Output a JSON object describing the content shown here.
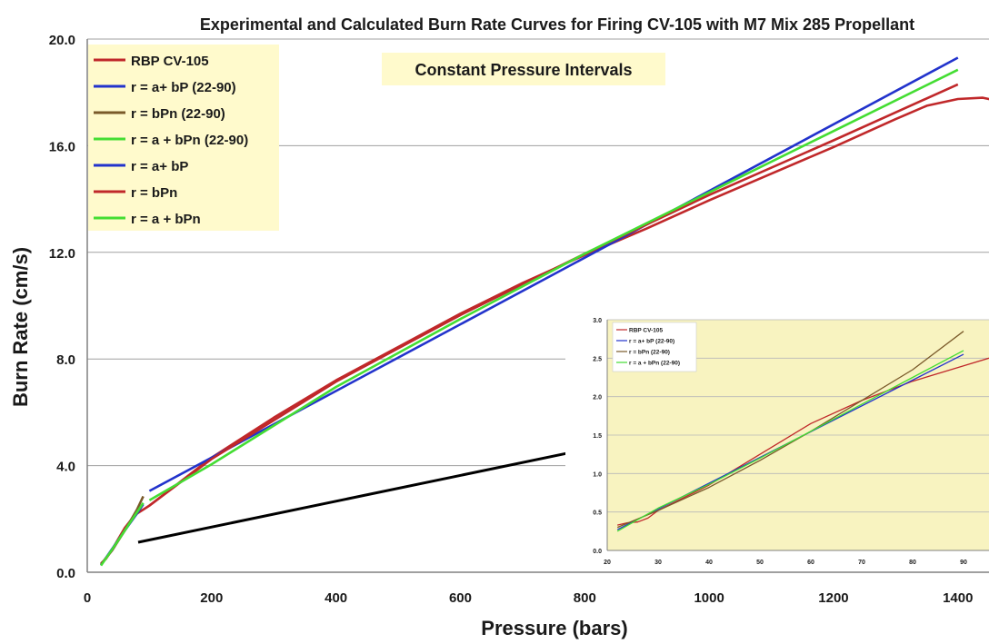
{
  "chart_data": [
    {
      "type": "line",
      "title": "Experimental and Calculated Burn Rate Curves for Firing CV-105 with M7  Mix 285 Propellant",
      "annotation": "Constant Pressure Intervals",
      "xlabel": "Pressure (bars)",
      "ylabel": "Burn Rate (cm/s)",
      "xlim": [
        0,
        1450
      ],
      "ylim": [
        0,
        20
      ],
      "xticks": [
        0,
        200,
        400,
        600,
        800,
        1000,
        1200,
        1400
      ],
      "xtick_labels": [
        "0",
        "200",
        "400",
        "600",
        "800",
        "1000",
        "1200",
        "1400"
      ],
      "yticks": [
        0,
        4,
        8,
        12,
        16,
        20
      ],
      "ytick_labels": [
        "0.0",
        "4.0",
        "8.0",
        "12.0",
        "16.0",
        "20.0"
      ],
      "grid": "horizontal",
      "legend_position": "top-left",
      "series": [
        {
          "name": "RBP CV-105",
          "color": "#c0282a",
          "x": [
            22,
            30,
            40,
            50,
            60,
            70,
            80,
            90,
            100,
            200,
            300,
            400,
            500,
            600,
            700,
            800,
            900,
            1000,
            1100,
            1200,
            1300,
            1350,
            1400,
            1440,
            1460
          ],
          "y": [
            0.33,
            0.5,
            0.85,
            1.25,
            1.65,
            1.95,
            2.2,
            2.35,
            2.5,
            4.3,
            5.8,
            7.2,
            8.45,
            9.7,
            10.85,
            11.9,
            12.9,
            13.95,
            14.95,
            15.95,
            17.0,
            17.5,
            17.75,
            17.8,
            17.7
          ]
        },
        {
          "name": "r = a+ bP (22-90)",
          "color": "#2233cc",
          "x": [
            22,
            40,
            60,
            80,
            90
          ],
          "y": [
            0.27,
            0.88,
            1.55,
            2.2,
            2.55
          ]
        },
        {
          "name": "r = bPn (22-90)",
          "color": "#7a5a2a",
          "x": [
            22,
            40,
            60,
            80,
            90
          ],
          "y": [
            0.3,
            0.82,
            1.55,
            2.35,
            2.85
          ]
        },
        {
          "name": "r = a + bPn (22-90)",
          "color": "#44dd33",
          "x": [
            22,
            40,
            60,
            80,
            90
          ],
          "y": [
            0.25,
            0.86,
            1.55,
            2.25,
            2.6
          ]
        },
        {
          "name": "r = a+ bP",
          "color": "#2233cc",
          "x": [
            100,
            1400
          ],
          "y": [
            3.05,
            19.3
          ]
        },
        {
          "name": "r = bPn",
          "color": "#c0282a",
          "x": [
            100,
            200,
            400,
            600,
            800,
            1000,
            1200,
            1400
          ],
          "y": [
            2.5,
            4.25,
            7.15,
            9.65,
            11.95,
            14.15,
            16.2,
            18.3
          ]
        },
        {
          "name": "r = a + bPn",
          "color": "#44dd33",
          "x": [
            100,
            200,
            400,
            600,
            800,
            1000,
            1200,
            1400
          ],
          "y": [
            2.7,
            4.05,
            6.95,
            9.5,
            11.95,
            14.25,
            16.55,
            18.85
          ]
        }
      ]
    },
    {
      "type": "line",
      "inset": true,
      "xlim": [
        20,
        95
      ],
      "ylim": [
        0,
        3
      ],
      "xticks": [
        20,
        30,
        40,
        50,
        60,
        70,
        80,
        90
      ],
      "xtick_labels": [
        "20",
        "30",
        "40",
        "50",
        "60",
        "70",
        "80",
        "90"
      ],
      "yticks": [
        0,
        0.5,
        1,
        1.5,
        2,
        2.5,
        3
      ],
      "ytick_labels": [
        "0.0",
        "0.5",
        "1.0",
        "1.5",
        "2.0",
        "2.5",
        "3.0"
      ],
      "grid": "horizontal",
      "legend_position": "top-left",
      "series": [
        {
          "name": "RBP CV-105",
          "color": "#c0282a",
          "x": [
            22,
            24,
            26,
            28,
            30,
            40,
            50,
            60,
            70,
            80,
            90,
            95
          ],
          "y": [
            0.33,
            0.36,
            0.37,
            0.42,
            0.52,
            0.85,
            1.25,
            1.65,
            1.95,
            2.2,
            2.4,
            2.5
          ]
        },
        {
          "name": "r = a+ bP (22-90)",
          "color": "#2233cc",
          "x": [
            22,
            90
          ],
          "y": [
            0.27,
            2.55
          ]
        },
        {
          "name": "r = bPn (22-90)",
          "color": "#7a5a2a",
          "x": [
            22,
            30,
            40,
            50,
            60,
            70,
            80,
            90
          ],
          "y": [
            0.3,
            0.52,
            0.82,
            1.17,
            1.55,
            1.95,
            2.35,
            2.85
          ]
        },
        {
          "name": "r = a + bPn (22-90)",
          "color": "#44dd33",
          "x": [
            22,
            30,
            40,
            50,
            60,
            70,
            80,
            90
          ],
          "y": [
            0.25,
            0.55,
            0.86,
            1.2,
            1.55,
            1.9,
            2.25,
            2.6
          ]
        }
      ]
    }
  ],
  "colors": {
    "legend_background": "#fffacc",
    "inset_background": "#f8f3c0",
    "gridline": "#a0a0a0",
    "arrow": "#000000"
  }
}
